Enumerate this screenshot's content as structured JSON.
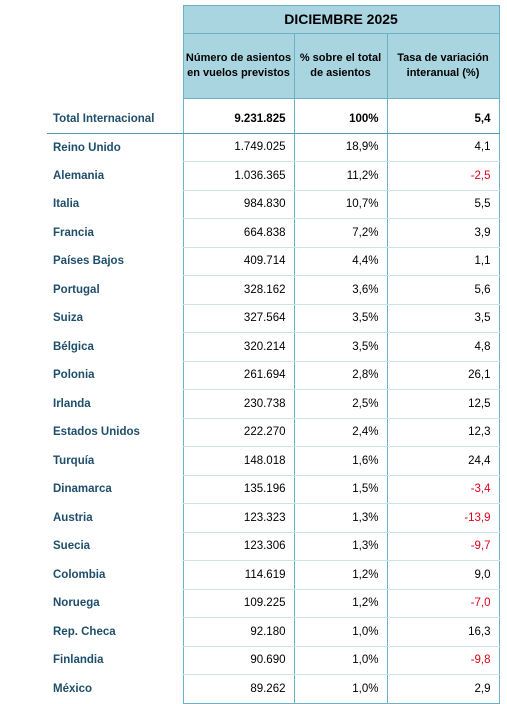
{
  "table": {
    "period": "DICIEMBRE 2025",
    "columns": [
      "Número de asientos en vuelos previstos",
      "% sobre el total de asientos",
      "Tasa de variación interanual (%)"
    ],
    "total": {
      "label": "Total Internacional",
      "seats": "9.231.825",
      "share": "100%",
      "change": "5,4"
    },
    "rows": [
      {
        "country": "Reino Unido",
        "seats": "1.749.025",
        "share": "18,9%",
        "change": "4,1",
        "negative": false
      },
      {
        "country": "Alemania",
        "seats": "1.036.365",
        "share": "11,2%",
        "change": "-2,5",
        "negative": true
      },
      {
        "country": "Italia",
        "seats": "984.830",
        "share": "10,7%",
        "change": "5,5",
        "negative": false
      },
      {
        "country": "Francia",
        "seats": "664.838",
        "share": "7,2%",
        "change": "3,9",
        "negative": false
      },
      {
        "country": "Países Bajos",
        "seats": "409.714",
        "share": "4,4%",
        "change": "1,1",
        "negative": false
      },
      {
        "country": "Portugal",
        "seats": "328.162",
        "share": "3,6%",
        "change": "5,6",
        "negative": false
      },
      {
        "country": "Suiza",
        "seats": "327.564",
        "share": "3,5%",
        "change": "3,5",
        "negative": false
      },
      {
        "country": "Bélgica",
        "seats": "320.214",
        "share": "3,5%",
        "change": "4,8",
        "negative": false
      },
      {
        "country": "Polonia",
        "seats": "261.694",
        "share": "2,8%",
        "change": "26,1",
        "negative": false
      },
      {
        "country": "Irlanda",
        "seats": "230.738",
        "share": "2,5%",
        "change": "12,5",
        "negative": false
      },
      {
        "country": "Estados Unidos",
        "seats": "222.270",
        "share": "2,4%",
        "change": "12,3",
        "negative": false
      },
      {
        "country": "Turquía",
        "seats": "148.018",
        "share": "1,6%",
        "change": "24,4",
        "negative": false
      },
      {
        "country": "Dinamarca",
        "seats": "135.196",
        "share": "1,5%",
        "change": "-3,4",
        "negative": true
      },
      {
        "country": "Austria",
        "seats": "123.323",
        "share": "1,3%",
        "change": "-13,9",
        "negative": true
      },
      {
        "country": "Suecia",
        "seats": "123.306",
        "share": "1,3%",
        "change": "-9,7",
        "negative": true
      },
      {
        "country": "Colombia",
        "seats": "114.619",
        "share": "1,2%",
        "change": "9,0",
        "negative": false
      },
      {
        "country": "Noruega",
        "seats": "109.225",
        "share": "1,2%",
        "change": "-7,0",
        "negative": true
      },
      {
        "country": "Rep. Checa",
        "seats": "92.180",
        "share": "1,0%",
        "change": "16,3",
        "negative": false
      },
      {
        "country": "Finlandia",
        "seats": "90.690",
        "share": "1,0%",
        "change": "-9,8",
        "negative": true
      },
      {
        "country": "México",
        "seats": "89.262",
        "share": "1,0%",
        "change": "2,9",
        "negative": false
      }
    ]
  },
  "colors": {
    "header_bg": "#a8d5df",
    "border": "#6ab3c6",
    "country_text": "#1f4e6b",
    "negative_text": "#e3001b"
  }
}
